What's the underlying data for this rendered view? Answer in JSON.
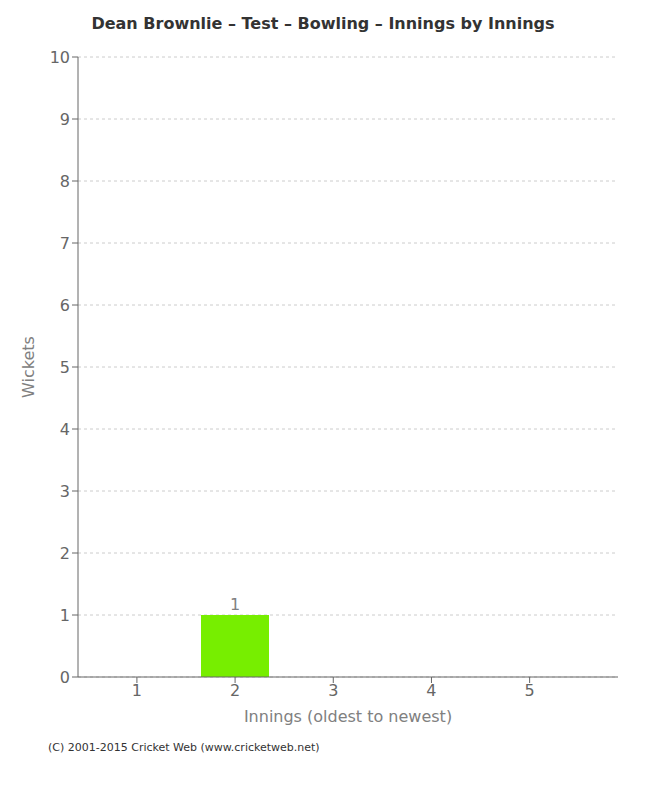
{
  "chart_data": {
    "type": "bar",
    "title": "Dean Brownlie – Test – Bowling – Innings by Innings",
    "xlabel": "Innings (oldest to newest)",
    "ylabel": "Wickets",
    "x": [
      1,
      2,
      3,
      4,
      5
    ],
    "values": [
      0,
      1,
      0,
      0,
      0
    ],
    "color": "#77ee00",
    "xlim": [
      0.4,
      5.9
    ],
    "xticks": [
      1,
      2,
      3,
      4,
      5
    ],
    "ylim": [
      0,
      10
    ],
    "yticks": [
      0,
      1,
      2,
      3,
      4,
      5,
      6,
      7,
      8,
      9,
      10
    ],
    "grid": true,
    "data_labels": true,
    "annotations": [
      "(C) 2001-2015 Cricket Web (www.cricketweb.net)"
    ]
  }
}
